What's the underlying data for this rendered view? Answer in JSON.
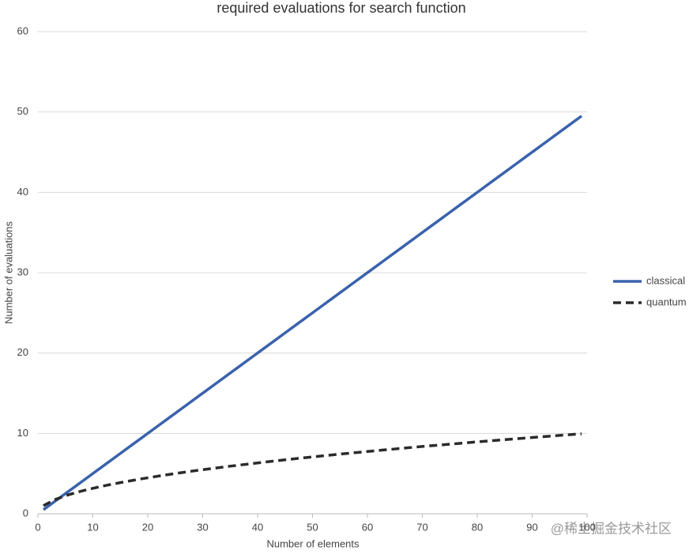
{
  "chart_data": {
    "type": "line",
    "title": "required evaluations for search function",
    "x_label": "Number of elements",
    "y_label": "Number of evaluations",
    "x": [
      1,
      3,
      5,
      7,
      9,
      11,
      13,
      15,
      17,
      19,
      21,
      23,
      25,
      27,
      29,
      31,
      33,
      35,
      37,
      39,
      41,
      43,
      45,
      47,
      49,
      51,
      53,
      55,
      57,
      59,
      61,
      63,
      65,
      67,
      69,
      71,
      73,
      75,
      77,
      79,
      81,
      83,
      85,
      87,
      89,
      91,
      93,
      95,
      97,
      99
    ],
    "series": [
      {
        "name": "classical",
        "color": "#3a62ad",
        "dash": false,
        "values": [
          0.5,
          1.5,
          2.5,
          3.5,
          4.5,
          5.5,
          6.5,
          7.5,
          8.5,
          9.5,
          10.5,
          11.5,
          12.5,
          13.5,
          14.5,
          15.5,
          16.5,
          17.5,
          18.5,
          19.5,
          20.5,
          21.5,
          22.5,
          23.5,
          24.5,
          25.5,
          26.5,
          27.5,
          28.5,
          29.5,
          30.5,
          31.5,
          32.5,
          33.5,
          34.5,
          35.5,
          36.5,
          37.5,
          38.5,
          39.5,
          40.5,
          41.5,
          42.5,
          43.5,
          44.5,
          45.5,
          46.5,
          47.5,
          48.5,
          49.5
        ]
      },
      {
        "name": "quantum",
        "color": "#2b2b2b",
        "dash": true,
        "values": [
          1,
          1.73,
          2.24,
          2.65,
          3,
          3.32,
          3.61,
          3.87,
          4.12,
          4.36,
          4.58,
          4.8,
          5,
          5.2,
          5.39,
          5.57,
          5.74,
          5.92,
          6.08,
          6.24,
          6.4,
          6.56,
          6.71,
          6.86,
          7,
          7.14,
          7.28,
          7.42,
          7.55,
          7.68,
          7.81,
          7.94,
          8.06,
          8.19,
          8.31,
          8.43,
          8.54,
          8.66,
          8.77,
          8.89,
          9,
          9.11,
          9.22,
          9.33,
          9.43,
          9.54,
          9.64,
          9.75,
          9.85,
          9.95
        ]
      }
    ],
    "xlim": [
      0,
      100
    ],
    "xticks": [
      0,
      10,
      20,
      30,
      40,
      50,
      60,
      70,
      80,
      90,
      100
    ],
    "ylim": [
      0,
      60
    ],
    "yticks": [
      0,
      10,
      20,
      30,
      40,
      50,
      60
    ],
    "grid": true,
    "legend": "right",
    "watermark": "@稀土掘金技术社区"
  }
}
